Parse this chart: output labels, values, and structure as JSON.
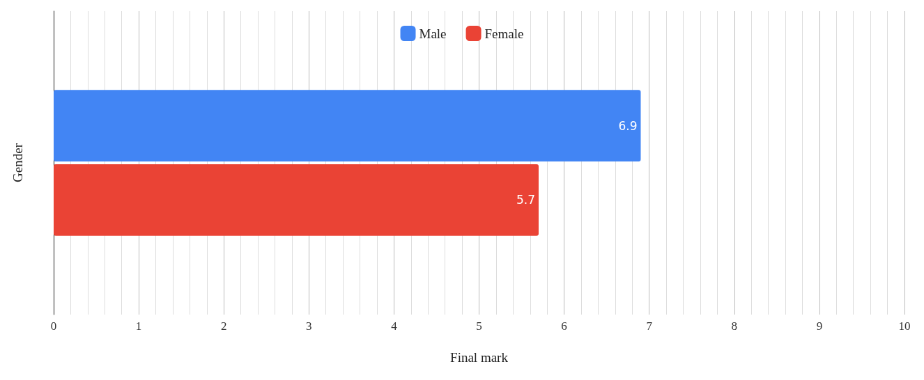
{
  "chart_data": {
    "type": "bar",
    "orientation": "horizontal",
    "xlabel": "Final mark",
    "ylabel": "Gender",
    "categories": [
      null
    ],
    "series": [
      {
        "name": "Male",
        "color": "#4285f4",
        "values": [
          6.9
        ]
      },
      {
        "name": "Female",
        "color": "#ea4335",
        "values": [
          5.7
        ]
      }
    ],
    "xlim": [
      0,
      10
    ],
    "xticks": [
      0,
      1,
      2,
      3,
      4,
      5,
      6,
      7,
      8,
      9,
      10
    ],
    "grid": "x",
    "legend": "top",
    "data_labels": true
  }
}
